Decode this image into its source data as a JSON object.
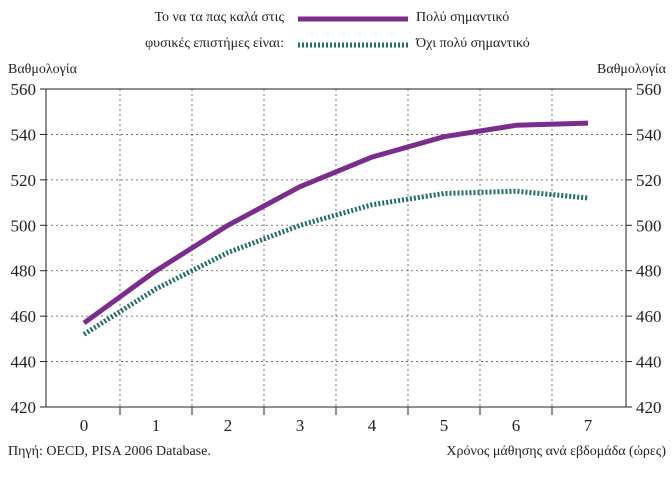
{
  "legend": {
    "prefix_line1": "Το να τα πας καλά στις",
    "prefix_line2": "φυσικές επιστήμες είναι:",
    "items": [
      {
        "label": "Πολύ σημαντικό",
        "color": "#7b2d8e",
        "style": "solid"
      },
      {
        "label": "Όχι πολύ σημαντικό",
        "color": "#1f6e6a",
        "style": "dotted"
      }
    ]
  },
  "axis": {
    "y_label_left": "Βαθμολογία",
    "y_label_right": "Βαθμολογία",
    "x_label": "Χρόνος μάθησης ανά εβδομάδα (ώρες)"
  },
  "source": "Πηγή: OECD, PISA 2006 Database.",
  "chart_data": {
    "type": "line",
    "x": [
      0,
      1,
      2,
      3,
      4,
      5,
      6,
      7
    ],
    "x_tick_labels": [
      "0",
      "1",
      "2",
      "3",
      "4",
      "5",
      "6",
      "7"
    ],
    "ylim": [
      420,
      560
    ],
    "y_ticks": [
      420,
      440,
      460,
      480,
      500,
      520,
      540,
      560
    ],
    "grid": true,
    "series": [
      {
        "name": "Πολύ σημαντικό",
        "values": [
          457,
          480,
          500,
          517,
          530,
          539,
          544,
          545
        ]
      },
      {
        "name": "Όχι πολύ σημαντικό",
        "values": [
          452,
          472,
          488,
          500,
          509,
          514,
          515,
          512
        ]
      }
    ]
  }
}
